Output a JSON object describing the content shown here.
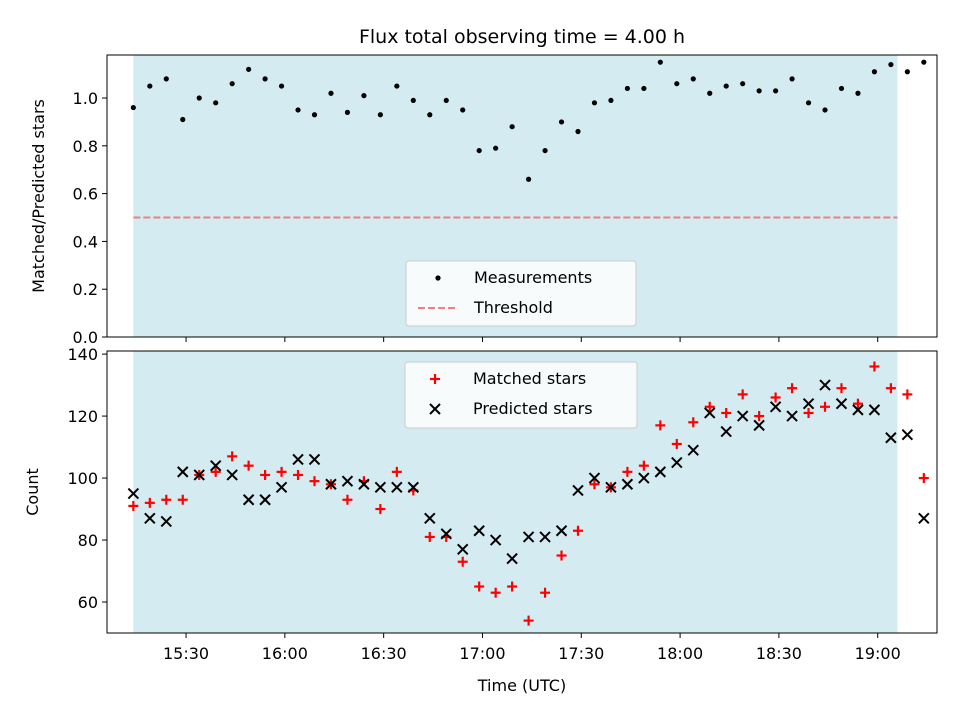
{
  "title": "Flux total observing time = 4.00 h",
  "colors": {
    "shade": "#d4ebf1",
    "threshold": "#f08080",
    "measurement": "#000000",
    "matched": "#ff0000",
    "predicted": "#000000"
  },
  "chart_data": [
    {
      "type": "scatter",
      "ylabel": "Matched/Predicted stars",
      "xlim": [
        "15:06",
        "19:18"
      ],
      "ylim": [
        0,
        1.18
      ],
      "yticks": [
        "0.0",
        "0.2",
        "0.4",
        "0.6",
        "0.8",
        "1.0"
      ],
      "grid": false,
      "legend": "lower-center",
      "shaded_interval": [
        "15:14",
        "19:06"
      ],
      "threshold": {
        "name": "Threshold",
        "value": 0.5
      },
      "series": [
        {
          "name": "Measurements",
          "x": [
            "15:14",
            "15:19",
            "15:24",
            "15:29",
            "15:34",
            "15:39",
            "15:44",
            "15:49",
            "15:54",
            "15:59",
            "16:04",
            "16:09",
            "16:14",
            "16:19",
            "16:24",
            "16:29",
            "16:34",
            "16:39",
            "16:44",
            "16:49",
            "16:54",
            "16:59",
            "17:04",
            "17:09",
            "17:14",
            "17:19",
            "17:24",
            "17:29",
            "17:34",
            "17:39",
            "17:44",
            "17:49",
            "17:54",
            "17:59",
            "18:04",
            "18:09",
            "18:14",
            "18:19",
            "18:24",
            "18:29",
            "18:34",
            "18:39",
            "18:44",
            "18:49",
            "18:54",
            "18:59",
            "19:04",
            "19:09",
            "19:14"
          ],
          "y": [
            0.96,
            1.05,
            1.08,
            0.91,
            1.0,
            0.98,
            1.06,
            1.12,
            1.08,
            1.05,
            0.95,
            0.93,
            1.02,
            0.94,
            1.01,
            0.93,
            1.05,
            0.99,
            0.93,
            0.99,
            0.95,
            0.78,
            0.79,
            0.88,
            0.66,
            0.78,
            0.9,
            0.86,
            0.98,
            0.99,
            1.04,
            1.04,
            1.15,
            1.06,
            1.08,
            1.02,
            1.05,
            1.06,
            1.03,
            1.03,
            1.08,
            0.98,
            0.95,
            1.04,
            1.02,
            1.11,
            1.14,
            1.11,
            1.15
          ]
        }
      ]
    },
    {
      "type": "scatter",
      "xlabel": "Time (UTC)",
      "ylabel": "Count",
      "xlim": [
        "15:06",
        "19:18"
      ],
      "ylim": [
        50,
        141
      ],
      "yticks": [
        "60",
        "80",
        "100",
        "120",
        "140"
      ],
      "xticks": [
        "15:30",
        "16:00",
        "16:30",
        "17:00",
        "17:30",
        "18:00",
        "18:30",
        "19:00"
      ],
      "grid": false,
      "legend": "upper-center",
      "shaded_interval": [
        "15:14",
        "19:06"
      ],
      "series": [
        {
          "name": "Matched stars",
          "x": [
            "15:14",
            "15:19",
            "15:24",
            "15:29",
            "15:34",
            "15:39",
            "15:44",
            "15:49",
            "15:54",
            "15:59",
            "16:04",
            "16:09",
            "16:14",
            "16:19",
            "16:24",
            "16:29",
            "16:34",
            "16:39",
            "16:44",
            "16:49",
            "16:54",
            "16:59",
            "17:04",
            "17:09",
            "17:14",
            "17:19",
            "17:24",
            "17:29",
            "17:34",
            "17:39",
            "17:44",
            "17:49",
            "17:54",
            "17:59",
            "18:04",
            "18:09",
            "18:14",
            "18:19",
            "18:24",
            "18:29",
            "18:34",
            "18:39",
            "18:44",
            "18:49",
            "18:54",
            "18:59",
            "19:04",
            "19:09",
            "19:14"
          ],
          "y": [
            91,
            92,
            93,
            93,
            101,
            102,
            107,
            104,
            101,
            102,
            101,
            99,
            98,
            93,
            99,
            90,
            102,
            96,
            81,
            81,
            73,
            65,
            63,
            65,
            54,
            63,
            75,
            83,
            98,
            97,
            102,
            104,
            117,
            111,
            118,
            123,
            121,
            127,
            120,
            126,
            129,
            121,
            123,
            129,
            124,
            136,
            129,
            127,
            100
          ]
        },
        {
          "name": "Predicted stars",
          "x": [
            "15:14",
            "15:19",
            "15:24",
            "15:29",
            "15:34",
            "15:39",
            "15:44",
            "15:49",
            "15:54",
            "15:59",
            "16:04",
            "16:09",
            "16:14",
            "16:19",
            "16:24",
            "16:29",
            "16:34",
            "16:39",
            "16:44",
            "16:49",
            "16:54",
            "16:59",
            "17:04",
            "17:09",
            "17:14",
            "17:19",
            "17:24",
            "17:29",
            "17:34",
            "17:39",
            "17:44",
            "17:49",
            "17:54",
            "17:59",
            "18:04",
            "18:09",
            "18:14",
            "18:19",
            "18:24",
            "18:29",
            "18:34",
            "18:39",
            "18:44",
            "18:49",
            "18:54",
            "18:59",
            "19:04",
            "19:09",
            "19:14"
          ],
          "y": [
            95,
            87,
            86,
            102,
            101,
            104,
            101,
            93,
            93,
            97,
            106,
            106,
            98,
            99,
            98,
            97,
            97,
            97,
            87,
            82,
            77,
            83,
            80,
            74,
            81,
            81,
            83,
            96,
            100,
            97,
            98,
            100,
            102,
            105,
            109,
            121,
            115,
            120,
            117,
            123,
            120,
            124,
            130,
            124,
            122,
            122,
            113,
            114,
            87
          ]
        }
      ]
    }
  ]
}
